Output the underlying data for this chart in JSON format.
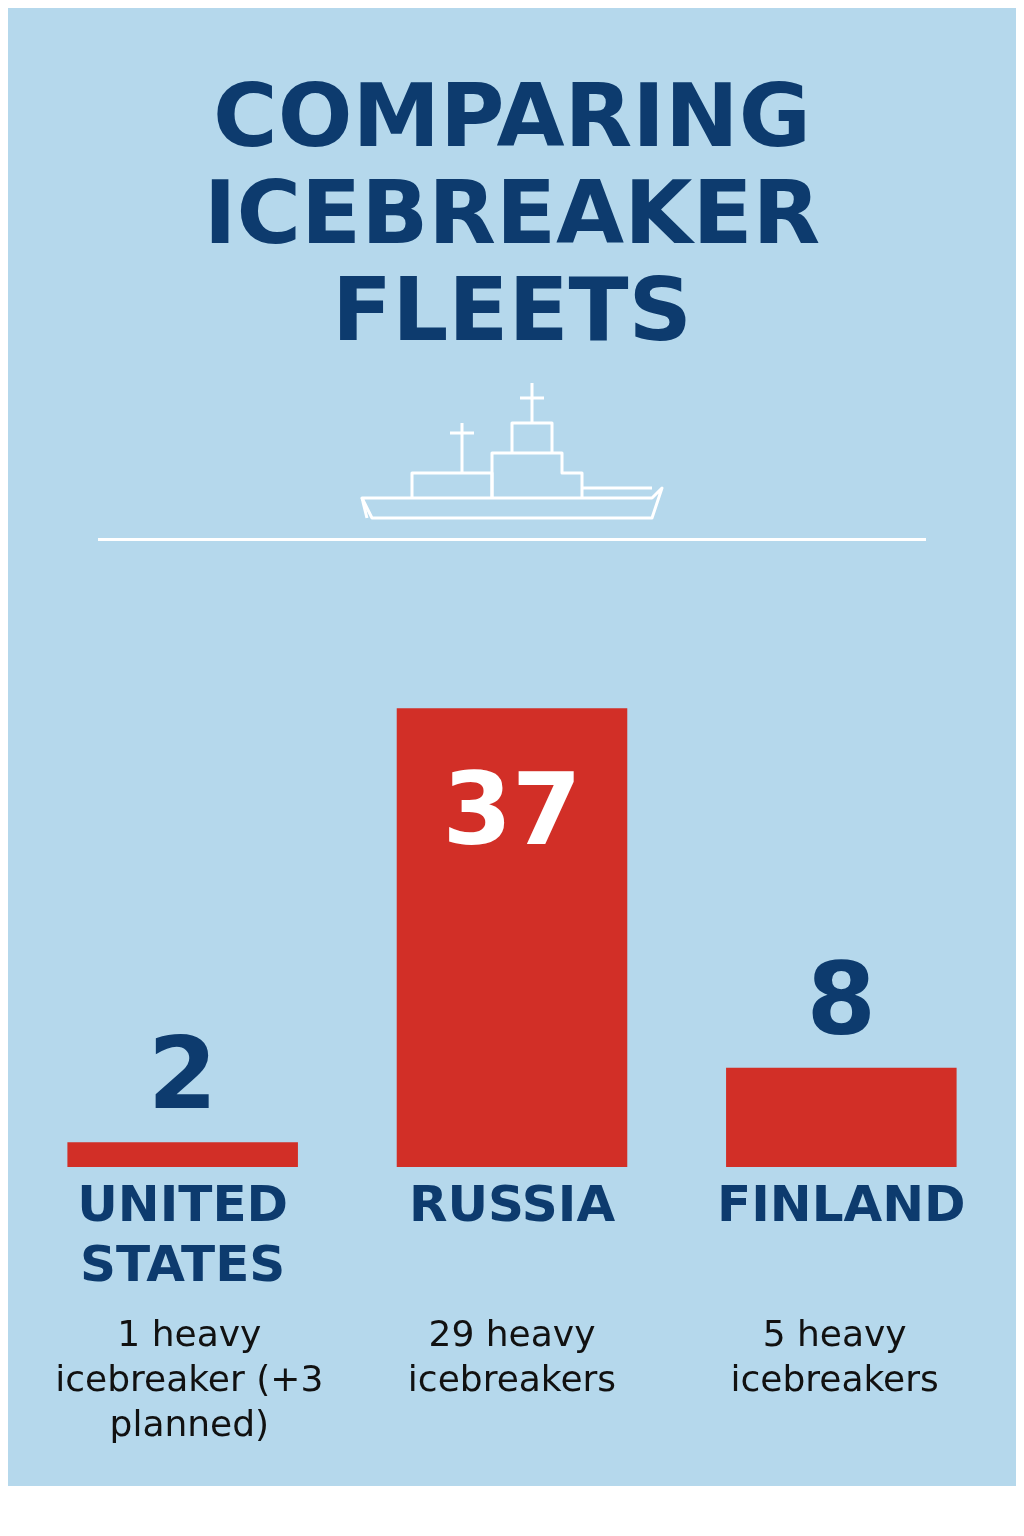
{
  "chart_data": {
    "type": "bar",
    "title": "COMPARING ICEBREAKER FLEETS",
    "categories": [
      "UNITED STATES",
      "RUSSIA",
      "FINLAND"
    ],
    "values": [
      2,
      37,
      8
    ],
    "color": "#d22f27",
    "data_labels": true,
    "tick_labels": "x",
    "annotations": [
      "1 heavy icebreaker (+3 planned)",
      "29 heavy icebreakers",
      "5 heavy icebreakers"
    ]
  }
}
